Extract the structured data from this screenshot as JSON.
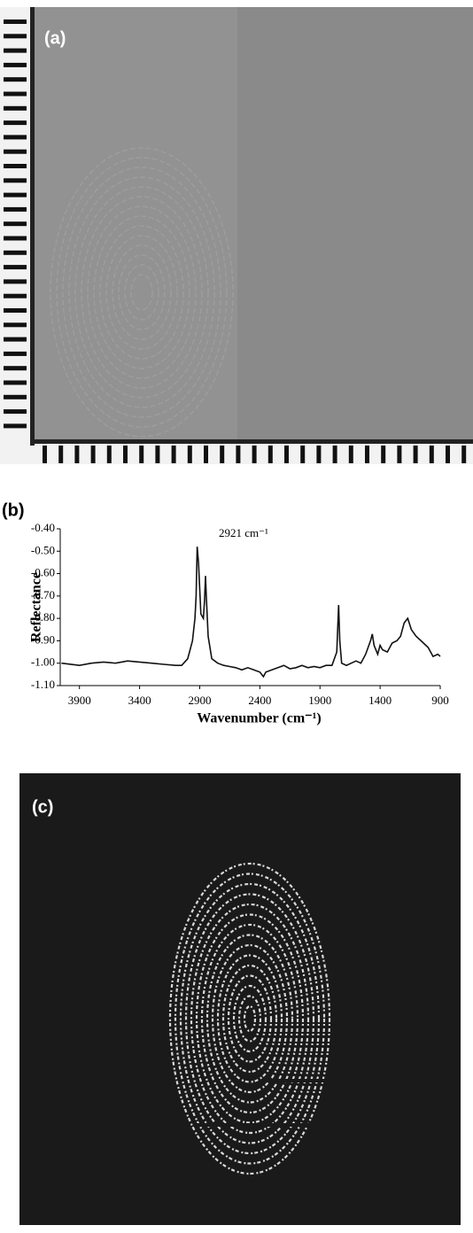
{
  "panel_labels": [
    "(a)",
    "(b)",
    "(c)"
  ],
  "chart_data": {
    "type": "line",
    "annotation": "2921 cm⁻¹",
    "xlabel": "Wavenumber (cm⁻¹)",
    "ylabel": "Reflectance",
    "color": "#111111",
    "xlim": [
      4060,
      900
    ],
    "xticks": [
      3900,
      3400,
      2900,
      2400,
      1900,
      1400,
      900
    ],
    "ylim": [
      -1.1,
      -0.4
    ],
    "yticks": [
      {
        "value": -0.4,
        "label": "-0.40"
      },
      {
        "value": -0.5,
        "label": "-0.50"
      },
      {
        "value": -0.6,
        "label": "-0.60"
      },
      {
        "value": -0.7,
        "label": "-0.70"
      },
      {
        "value": -0.8,
        "label": "-0.80"
      },
      {
        "value": -0.9,
        "label": "-0.90"
      },
      {
        "value": -1.0,
        "label": "-1.00"
      },
      {
        "value": -1.1,
        "label": "-1.10"
      }
    ],
    "x": [
      4050,
      3900,
      3800,
      3700,
      3600,
      3500,
      3400,
      3300,
      3200,
      3100,
      3050,
      3000,
      2960,
      2940,
      2930,
      2921,
      2910,
      2890,
      2870,
      2860,
      2852,
      2845,
      2830,
      2800,
      2750,
      2700,
      2650,
      2600,
      2550,
      2500,
      2450,
      2400,
      2370,
      2350,
      2300,
      2250,
      2200,
      2150,
      2100,
      2050,
      2000,
      1950,
      1900,
      1850,
      1800,
      1760,
      1745,
      1735,
      1720,
      1680,
      1640,
      1600,
      1560,
      1520,
      1480,
      1465,
      1450,
      1420,
      1400,
      1380,
      1340,
      1300,
      1260,
      1230,
      1200,
      1170,
      1140,
      1100,
      1060,
      1000,
      960,
      920,
      900
    ],
    "values": [
      -1.0,
      -1.01,
      -1.0,
      -0.995,
      -1.0,
      -0.99,
      -0.995,
      -1.0,
      -1.005,
      -1.01,
      -1.01,
      -0.98,
      -0.9,
      -0.8,
      -0.7,
      -0.48,
      -0.55,
      -0.78,
      -0.8,
      -0.72,
      -0.61,
      -0.7,
      -0.88,
      -0.98,
      -1.0,
      -1.01,
      -1.015,
      -1.02,
      -1.03,
      -1.02,
      -1.03,
      -1.04,
      -1.06,
      -1.04,
      -1.03,
      -1.02,
      -1.01,
      -1.025,
      -1.02,
      -1.01,
      -1.02,
      -1.015,
      -1.02,
      -1.01,
      -1.01,
      -0.95,
      -0.74,
      -0.9,
      -1.0,
      -1.01,
      -1.0,
      -0.99,
      -1.0,
      -0.96,
      -0.9,
      -0.87,
      -0.92,
      -0.96,
      -0.92,
      -0.94,
      -0.95,
      -0.91,
      -0.9,
      -0.88,
      -0.82,
      -0.8,
      -0.85,
      -0.88,
      -0.9,
      -0.93,
      -0.97,
      -0.96,
      -0.97
    ]
  }
}
